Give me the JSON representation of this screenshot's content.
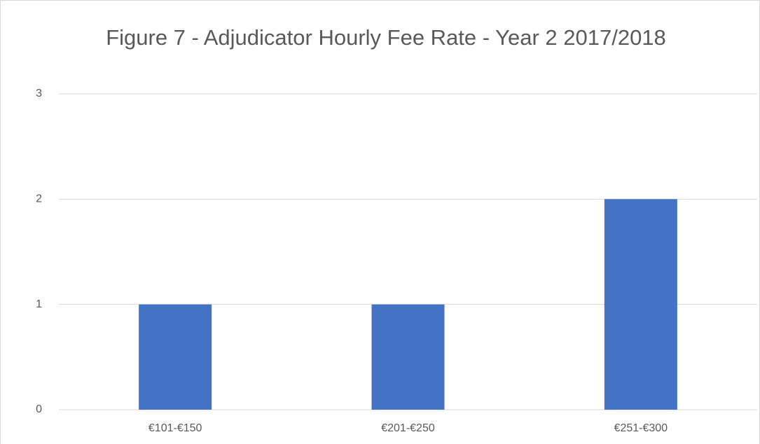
{
  "chart_data": {
    "type": "bar",
    "title": "Figure 7 - Adjudicator Hourly Fee Rate - Year 2 2017/2018",
    "categories": [
      "€101-€150",
      "€201-€250",
      "€251-€300"
    ],
    "values": [
      1,
      1,
      2
    ],
    "color": "#4472c4",
    "ylim": [
      0,
      3
    ],
    "yticks": [
      0,
      1,
      2,
      3
    ],
    "grid": true
  }
}
